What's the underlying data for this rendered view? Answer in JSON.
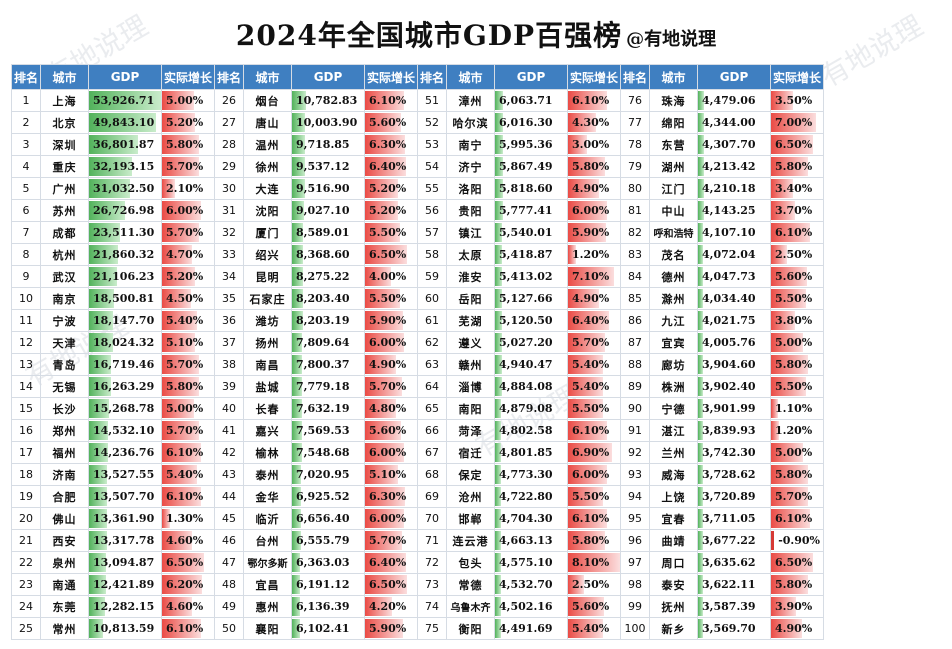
{
  "title": "2024年全国城市GDP百强榜",
  "author": "@有地说理",
  "watermark_text": "有地说理",
  "colors": {
    "header_bg": "#3f7fc1",
    "gdp_bar": "#52b25b",
    "growth_bar": "#ea4b45"
  },
  "headers": [
    "排名",
    "城市",
    "GDP",
    "实际增长"
  ],
  "gdp_max": 53926.71,
  "growth_max": 8.1,
  "rows": [
    [
      "1",
      "上海",
      "53,926.71",
      "5.00%"
    ],
    [
      "2",
      "北京",
      "49,843.10",
      "5.20%"
    ],
    [
      "3",
      "深圳",
      "36,801.87",
      "5.80%"
    ],
    [
      "4",
      "重庆",
      "32,193.15",
      "5.70%"
    ],
    [
      "5",
      "广州",
      "31,032.50",
      "2.10%"
    ],
    [
      "6",
      "苏州",
      "26,726.98",
      "6.00%"
    ],
    [
      "7",
      "成都",
      "23,511.30",
      "5.70%"
    ],
    [
      "8",
      "杭州",
      "21,860.32",
      "4.70%"
    ],
    [
      "9",
      "武汉",
      "21,106.23",
      "5.20%"
    ],
    [
      "10",
      "南京",
      "18,500.81",
      "4.50%"
    ],
    [
      "11",
      "宁波",
      "18,147.70",
      "5.40%"
    ],
    [
      "12",
      "天津",
      "18,024.32",
      "5.10%"
    ],
    [
      "13",
      "青岛",
      "16,719.46",
      "5.70%"
    ],
    [
      "14",
      "无锡",
      "16,263.29",
      "5.80%"
    ],
    [
      "15",
      "长沙",
      "15,268.78",
      "5.00%"
    ],
    [
      "16",
      "郑州",
      "14,532.10",
      "5.70%"
    ],
    [
      "17",
      "福州",
      "14,236.76",
      "6.10%"
    ],
    [
      "18",
      "济南",
      "13,527.55",
      "5.40%"
    ],
    [
      "19",
      "合肥",
      "13,507.70",
      "6.10%"
    ],
    [
      "20",
      "佛山",
      "13,361.90",
      "1.30%"
    ],
    [
      "21",
      "西安",
      "13,317.78",
      "4.60%"
    ],
    [
      "22",
      "泉州",
      "13,094.87",
      "6.50%"
    ],
    [
      "23",
      "南通",
      "12,421.89",
      "6.20%"
    ],
    [
      "24",
      "东莞",
      "12,282.15",
      "4.60%"
    ],
    [
      "25",
      "常州",
      "10,813.59",
      "6.10%"
    ],
    [
      "26",
      "烟台",
      "10,782.83",
      "6.10%"
    ],
    [
      "27",
      "唐山",
      "10,003.90",
      "5.60%"
    ],
    [
      "28",
      "温州",
      "9,718.85",
      "6.30%"
    ],
    [
      "29",
      "徐州",
      "9,537.12",
      "6.40%"
    ],
    [
      "30",
      "大连",
      "9,516.90",
      "5.20%"
    ],
    [
      "31",
      "沈阳",
      "9,027.10",
      "5.20%"
    ],
    [
      "32",
      "厦门",
      "8,589.01",
      "5.50%"
    ],
    [
      "33",
      "绍兴",
      "8,368.60",
      "6.50%"
    ],
    [
      "34",
      "昆明",
      "8,275.22",
      "4.00%"
    ],
    [
      "35",
      "石家庄",
      "8,203.40",
      "5.50%"
    ],
    [
      "36",
      "潍坊",
      "8,203.19",
      "5.90%"
    ],
    [
      "37",
      "扬州",
      "7,809.64",
      "6.00%"
    ],
    [
      "38",
      "南昌",
      "7,800.37",
      "4.90%"
    ],
    [
      "39",
      "盐城",
      "7,779.18",
      "5.70%"
    ],
    [
      "40",
      "长春",
      "7,632.19",
      "4.80%"
    ],
    [
      "41",
      "嘉兴",
      "7,569.53",
      "5.60%"
    ],
    [
      "42",
      "榆林",
      "7,548.68",
      "6.00%"
    ],
    [
      "43",
      "泰州",
      "7,020.95",
      "5.10%"
    ],
    [
      "44",
      "金华",
      "6,925.52",
      "6.30%"
    ],
    [
      "45",
      "临沂",
      "6,656.40",
      "6.00%"
    ],
    [
      "46",
      "台州",
      "6,555.79",
      "5.70%"
    ],
    [
      "47",
      "鄂尔多斯",
      "6,363.03",
      "6.40%"
    ],
    [
      "48",
      "宜昌",
      "6,191.12",
      "6.50%"
    ],
    [
      "49",
      "惠州",
      "6,136.39",
      "4.20%"
    ],
    [
      "50",
      "襄阳",
      "6,102.41",
      "5.90%"
    ],
    [
      "51",
      "漳州",
      "6,063.71",
      "6.10%"
    ],
    [
      "52",
      "哈尔滨",
      "6,016.30",
      "4.30%"
    ],
    [
      "53",
      "南宁",
      "5,995.36",
      "3.00%"
    ],
    [
      "54",
      "济宁",
      "5,867.49",
      "5.80%"
    ],
    [
      "55",
      "洛阳",
      "5,818.60",
      "4.90%"
    ],
    [
      "56",
      "贵阳",
      "5,777.41",
      "6.00%"
    ],
    [
      "57",
      "镇江",
      "5,540.01",
      "5.90%"
    ],
    [
      "58",
      "太原",
      "5,418.87",
      "1.20%"
    ],
    [
      "59",
      "淮安",
      "5,413.02",
      "7.10%"
    ],
    [
      "60",
      "岳阳",
      "5,127.66",
      "4.90%"
    ],
    [
      "61",
      "芜湖",
      "5,120.50",
      "6.40%"
    ],
    [
      "62",
      "遵义",
      "5,027.20",
      "5.70%"
    ],
    [
      "63",
      "赣州",
      "4,940.47",
      "5.40%"
    ],
    [
      "64",
      "淄博",
      "4,884.08",
      "5.40%"
    ],
    [
      "65",
      "南阳",
      "4,879.08",
      "5.50%"
    ],
    [
      "66",
      "菏泽",
      "4,802.58",
      "6.10%"
    ],
    [
      "67",
      "宿迁",
      "4,801.85",
      "6.90%"
    ],
    [
      "68",
      "保定",
      "4,773.30",
      "6.00%"
    ],
    [
      "69",
      "沧州",
      "4,722.80",
      "5.50%"
    ],
    [
      "70",
      "邯郸",
      "4,704.30",
      "6.10%"
    ],
    [
      "71",
      "连云港",
      "4,663.13",
      "5.80%"
    ],
    [
      "72",
      "包头",
      "4,575.10",
      "8.10%"
    ],
    [
      "73",
      "常德",
      "4,532.70",
      "2.50%"
    ],
    [
      "74",
      "乌鲁木齐",
      "4,502.16",
      "5.60%"
    ],
    [
      "75",
      "衡阳",
      "4,491.69",
      "5.40%"
    ],
    [
      "76",
      "珠海",
      "4,479.06",
      "3.50%"
    ],
    [
      "77",
      "绵阳",
      "4,344.00",
      "7.00%"
    ],
    [
      "78",
      "东营",
      "4,307.70",
      "6.50%"
    ],
    [
      "79",
      "湖州",
      "4,213.42",
      "5.80%"
    ],
    [
      "80",
      "江门",
      "4,210.18",
      "3.40%"
    ],
    [
      "81",
      "中山",
      "4,143.25",
      "3.70%"
    ],
    [
      "82",
      "呼和浩特",
      "4,107.10",
      "6.10%"
    ],
    [
      "83",
      "茂名",
      "4,072.04",
      "2.50%"
    ],
    [
      "84",
      "德州",
      "4,047.73",
      "5.60%"
    ],
    [
      "85",
      "滁州",
      "4,034.40",
      "5.50%"
    ],
    [
      "86",
      "九江",
      "4,021.75",
      "3.80%"
    ],
    [
      "87",
      "宜宾",
      "4,005.76",
      "5.00%"
    ],
    [
      "88",
      "廊坊",
      "3,904.60",
      "5.80%"
    ],
    [
      "89",
      "株洲",
      "3,902.40",
      "5.50%"
    ],
    [
      "90",
      "宁德",
      "3,901.99",
      "1.10%"
    ],
    [
      "91",
      "湛江",
      "3,839.93",
      "1.20%"
    ],
    [
      "92",
      "兰州",
      "3,742.30",
      "5.00%"
    ],
    [
      "93",
      "威海",
      "3,728.62",
      "5.80%"
    ],
    [
      "94",
      "上饶",
      "3,720.89",
      "5.70%"
    ],
    [
      "95",
      "宜春",
      "3,711.05",
      "6.10%"
    ],
    [
      "96",
      "曲靖",
      "3,677.22",
      "-0.90%"
    ],
    [
      "97",
      "周口",
      "3,635.62",
      "6.50%"
    ],
    [
      "98",
      "泰安",
      "3,622.11",
      "5.80%"
    ],
    [
      "99",
      "抚州",
      "3,587.39",
      "3.90%"
    ],
    [
      "100",
      "新乡",
      "3,569.70",
      "4.90%"
    ]
  ]
}
